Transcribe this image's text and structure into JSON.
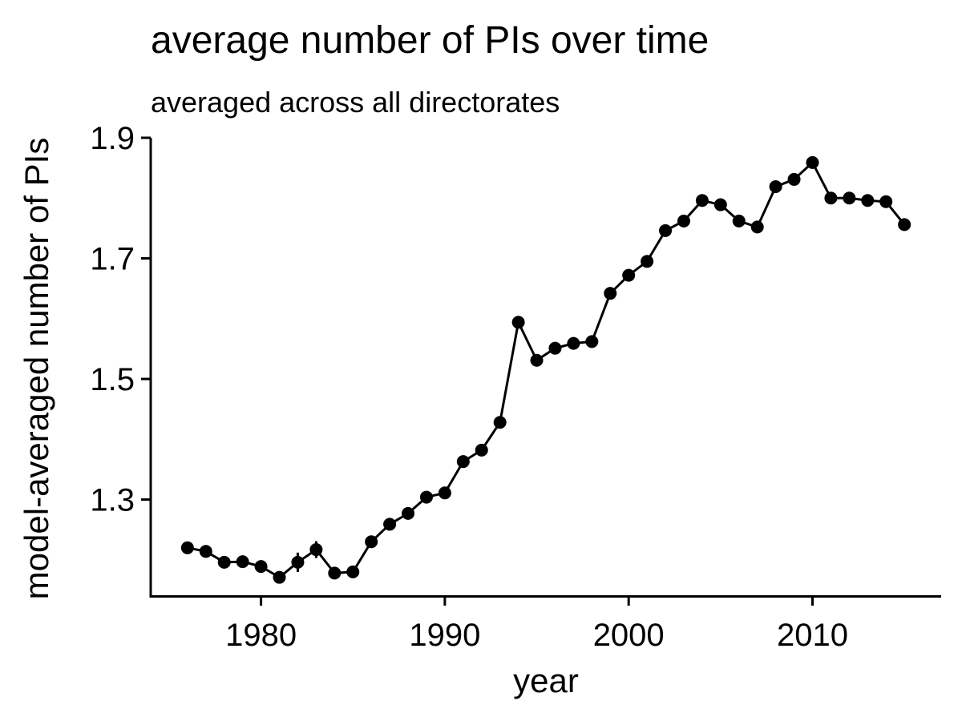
{
  "chart_data": {
    "type": "line",
    "title": "average number of PIs over time",
    "subtitle": "averaged across all directorates",
    "xlabel": "year",
    "ylabel": "model-averaged number of PIs",
    "xlim": [
      1974,
      2017
    ],
    "ylim": [
      1.14,
      1.9
    ],
    "xticks": [
      1980,
      1990,
      2000,
      2010
    ],
    "yticks": [
      1.3,
      1.5,
      1.7,
      1.9
    ],
    "ytick_labels": [
      "1.3",
      "1.5",
      "1.7",
      "1.9"
    ],
    "grid": false,
    "series": [
      {
        "x": [
          1976,
          1977,
          1978,
          1979,
          1980,
          1981,
          1982,
          1983,
          1984,
          1985,
          1986,
          1987,
          1988,
          1989,
          1990,
          1991,
          1992,
          1993,
          1994,
          1995,
          1996,
          1997,
          1998,
          1999,
          2000,
          2001,
          2002,
          2003,
          2004,
          2005,
          2006,
          2007,
          2008,
          2009,
          2010,
          2011,
          2012,
          2013,
          2014,
          2015
        ],
        "values": [
          1.22,
          1.214,
          1.196,
          1.197,
          1.189,
          1.171,
          1.196,
          1.217,
          1.178,
          1.18,
          1.23,
          1.259,
          1.277,
          1.304,
          1.311,
          1.363,
          1.382,
          1.428,
          1.594,
          1.531,
          1.551,
          1.559,
          1.562,
          1.642,
          1.672,
          1.695,
          1.746,
          1.762,
          1.796,
          1.789,
          1.762,
          1.752,
          1.819,
          1.831,
          1.859,
          1.8,
          1.8,
          1.796,
          1.794,
          1.756
        ],
        "err": [
          0.006,
          0.006,
          0.006,
          0.006,
          0.007,
          0.01,
          0.016,
          0.014,
          0.01,
          0.009,
          0.01,
          0.009,
          0.009,
          0.009,
          0.009,
          0.008,
          0.008,
          0.008,
          0.008,
          0.008,
          0.008,
          0.008,
          0.007,
          0.007,
          0.007,
          0.007,
          0.007,
          0.007,
          0.007,
          0.007,
          0.007,
          0.007,
          0.007,
          0.007,
          0.007,
          0.007,
          0.007,
          0.007,
          0.007,
          0.007
        ],
        "color": "#000000"
      }
    ]
  }
}
